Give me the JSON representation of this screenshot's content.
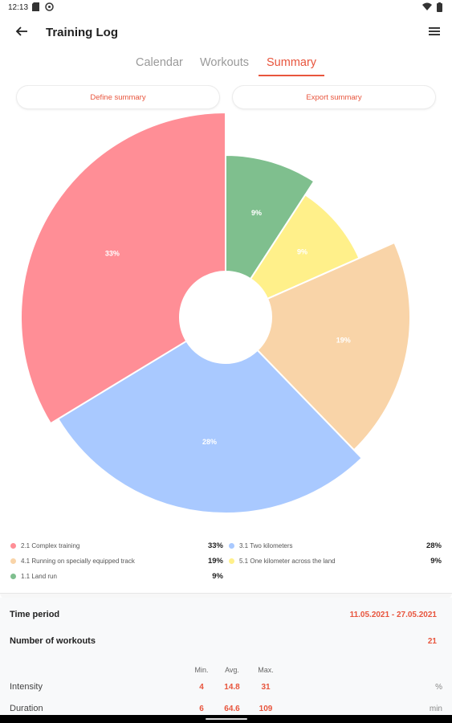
{
  "status_bar": {
    "time": "12:13"
  },
  "app_bar": {
    "title": "Training Log",
    "back_icon": "arrow-left-icon",
    "menu_icon": "hamburger-menu-icon"
  },
  "tabs": [
    {
      "label": "Calendar",
      "active": false
    },
    {
      "label": "Workouts",
      "active": false
    },
    {
      "label": "Summary",
      "active": true
    }
  ],
  "actions": {
    "define_label": "Define summary",
    "export_label": "Export summary"
  },
  "colors": {
    "accent": "#e8553d"
  },
  "chart_data": {
    "type": "pie",
    "series": [
      {
        "name": "1.1 Land run",
        "value": 9,
        "label": "9%",
        "color": "#7fbf8e"
      },
      {
        "name": "5.1 One kilometer across the land",
        "value": 9,
        "label": "9%",
        "color": "#fff08a"
      },
      {
        "name": "4.1 Running on specially equipped track",
        "value": 19,
        "label": "19%",
        "color": "#f9d4a8"
      },
      {
        "name": "3.1 Two kilometers",
        "value": 28,
        "label": "28%",
        "color": "#a9c9ff"
      },
      {
        "name": "2.1 Complex training",
        "value": 33,
        "label": "33%",
        "color": "#ff8e96"
      }
    ]
  },
  "legend": [
    {
      "label": "2.1 Complex training",
      "pct": "33%",
      "color": "#ff8e96"
    },
    {
      "label": "3.1 Two kilometers",
      "pct": "28%",
      "color": "#a9c9ff"
    },
    {
      "label": "4.1 Running on specially equipped track",
      "pct": "19%",
      "color": "#f9d4a8"
    },
    {
      "label": "5.1 One kilometer across the land",
      "pct": "9%",
      "color": "#fff08a"
    },
    {
      "label": "1.1 Land run",
      "pct": "9%",
      "color": "#7fbf8e"
    }
  ],
  "info": {
    "time_period_label": "Time period",
    "time_period_value": "11.05.2021 - 27.05.2021",
    "workouts_label": "Number of workouts",
    "workouts_value": "21"
  },
  "stats": {
    "headers": [
      "Min.",
      "Avg.",
      "Max."
    ],
    "rows": [
      {
        "label": "Intensity",
        "min": "4",
        "avg": "14.8",
        "max": "31",
        "unit": "%"
      },
      {
        "label": "Duration",
        "min": "6",
        "avg": "64.6",
        "max": "109",
        "unit": "min"
      }
    ]
  }
}
